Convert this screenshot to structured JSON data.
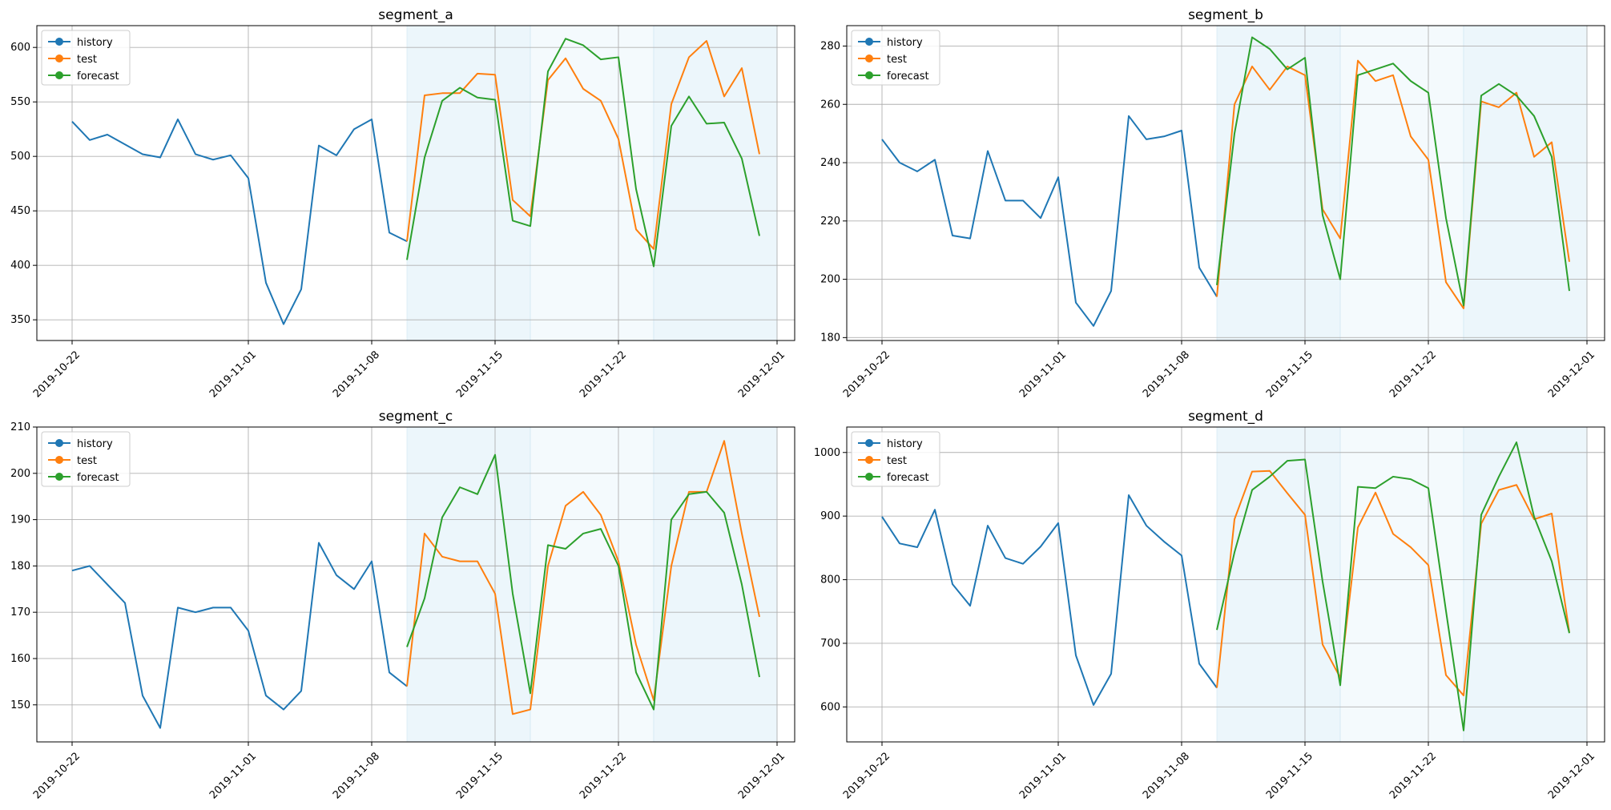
{
  "colors": {
    "history": "#1f77b4",
    "test": "#ff7f0e",
    "forecast": "#2ca02c",
    "grid": "#b0b0b0",
    "shade": "#e6f3fa"
  },
  "chart_data": [
    {
      "type": "line",
      "title": "segment_a",
      "xlabel": "",
      "ylabel": "",
      "x_ticks": [
        "2019-10-22",
        "2019-11-01",
        "2019-11-08",
        "2019-11-15",
        "2019-11-22",
        "2019-12-01"
      ],
      "y_ticks": [
        350,
        400,
        450,
        500,
        550,
        600
      ],
      "ylim": [
        331,
        620
      ],
      "xlim": [
        "2019-10-20",
        "2019-12-02"
      ],
      "grid": true,
      "legend": "top-left",
      "legend_entries": [
        "history",
        "test",
        "forecast"
      ],
      "shaded_ranges": [
        {
          "start": "2019-11-10",
          "end": "2019-11-17",
          "level": "darker"
        },
        {
          "start": "2019-11-17",
          "end": "2019-11-24",
          "level": "lighter"
        },
        {
          "start": "2019-11-24",
          "end": "2019-12-01",
          "level": "darker"
        }
      ],
      "series": [
        {
          "name": "history",
          "start": "2019-10-22",
          "values": [
            532,
            515,
            520,
            511,
            502,
            499,
            534,
            502,
            497,
            501,
            480,
            384,
            346,
            378,
            510,
            501,
            525,
            534,
            430,
            422
          ]
        },
        {
          "name": "test",
          "start": "2019-11-10",
          "values": [
            422,
            556,
            558,
            558,
            576,
            575,
            460,
            445,
            570,
            590,
            562,
            551,
            516,
            433,
            415,
            548,
            591,
            606,
            555,
            581,
            502
          ]
        },
        {
          "name": "forecast",
          "start": "2019-11-10",
          "values": [
            405,
            499,
            551,
            563,
            554,
            552,
            441,
            436,
            578,
            608,
            602,
            589,
            591,
            470,
            399,
            528,
            555,
            530,
            531,
            498,
            427
          ]
        }
      ]
    },
    {
      "type": "line",
      "title": "segment_b",
      "xlabel": "",
      "ylabel": "",
      "x_ticks": [
        "2019-10-22",
        "2019-11-01",
        "2019-11-08",
        "2019-11-15",
        "2019-11-22",
        "2019-12-01"
      ],
      "y_ticks": [
        180,
        200,
        220,
        240,
        260,
        280
      ],
      "ylim": [
        179,
        287
      ],
      "xlim": [
        "2019-10-20",
        "2019-12-02"
      ],
      "grid": true,
      "legend": "top-left",
      "legend_entries": [
        "history",
        "test",
        "forecast"
      ],
      "shaded_ranges": [
        {
          "start": "2019-11-10",
          "end": "2019-11-17",
          "level": "darker"
        },
        {
          "start": "2019-11-17",
          "end": "2019-11-24",
          "level": "lighter"
        },
        {
          "start": "2019-11-24",
          "end": "2019-12-01",
          "level": "darker"
        }
      ],
      "series": [
        {
          "name": "history",
          "start": "2019-10-22",
          "values": [
            248,
            240,
            237,
            241,
            215,
            214,
            244,
            227,
            227,
            221,
            235,
            192,
            184,
            196,
            256,
            248,
            249,
            251,
            204,
            194
          ]
        },
        {
          "name": "test",
          "start": "2019-11-10",
          "values": [
            194,
            260,
            273,
            265,
            273,
            270,
            224,
            214,
            275,
            268,
            270,
            249,
            241,
            199,
            190,
            261,
            259,
            264,
            242,
            247,
            206
          ]
        },
        {
          "name": "forecast",
          "start": "2019-11-10",
          "values": [
            198,
            250,
            283,
            279,
            272,
            276,
            222,
            200,
            270,
            272,
            274,
            268,
            264,
            221,
            191,
            263,
            267,
            263,
            256,
            242,
            196
          ]
        }
      ]
    },
    {
      "type": "line",
      "title": "segment_c",
      "xlabel": "",
      "ylabel": "",
      "x_ticks": [
        "2019-10-22",
        "2019-11-01",
        "2019-11-08",
        "2019-11-15",
        "2019-11-22",
        "2019-12-01"
      ],
      "y_ticks": [
        150,
        160,
        170,
        180,
        190,
        200,
        210
      ],
      "ylim": [
        142,
        210
      ],
      "xlim": [
        "2019-10-20",
        "2019-12-02"
      ],
      "grid": true,
      "legend": "top-left",
      "legend_entries": [
        "history",
        "test",
        "forecast"
      ],
      "shaded_ranges": [
        {
          "start": "2019-11-10",
          "end": "2019-11-17",
          "level": "darker"
        },
        {
          "start": "2019-11-17",
          "end": "2019-11-24",
          "level": "lighter"
        },
        {
          "start": "2019-11-24",
          "end": "2019-12-01",
          "level": "darker"
        }
      ],
      "series": [
        {
          "name": "history",
          "start": "2019-10-22",
          "values": [
            179,
            180,
            176,
            172,
            152,
            145,
            171,
            170,
            171,
            171,
            166,
            152,
            149,
            153,
            185,
            178,
            175,
            181,
            157,
            154
          ]
        },
        {
          "name": "test",
          "start": "2019-11-10",
          "values": [
            154,
            187,
            182,
            181,
            181,
            174,
            148,
            149,
            180,
            193,
            196,
            191,
            181,
            163,
            151,
            180,
            196,
            196,
            207,
            187,
            169
          ]
        },
        {
          "name": "forecast",
          "start": "2019-11-10",
          "values": [
            162.5,
            173,
            190.5,
            197,
            195.5,
            204,
            174,
            152.5,
            184.5,
            183.7,
            187,
            188,
            180,
            157,
            149,
            190,
            195.5,
            196,
            191.5,
            176,
            156
          ]
        }
      ]
    },
    {
      "type": "line",
      "title": "segment_d",
      "xlabel": "",
      "ylabel": "",
      "x_ticks": [
        "2019-10-22",
        "2019-11-01",
        "2019-11-08",
        "2019-11-15",
        "2019-11-22",
        "2019-12-01"
      ],
      "y_ticks": [
        600,
        700,
        800,
        900,
        1000
      ],
      "ylim": [
        545,
        1040
      ],
      "xlim": [
        "2019-10-20",
        "2019-12-02"
      ],
      "grid": true,
      "legend": "top-left",
      "legend_entries": [
        "history",
        "test",
        "forecast"
      ],
      "shaded_ranges": [
        {
          "start": "2019-11-10",
          "end": "2019-11-17",
          "level": "darker"
        },
        {
          "start": "2019-11-17",
          "end": "2019-11-24",
          "level": "lighter"
        },
        {
          "start": "2019-11-24",
          "end": "2019-12-01",
          "level": "darker"
        }
      ],
      "series": [
        {
          "name": "history",
          "start": "2019-10-22",
          "values": [
            899,
            857,
            851,
            910,
            793,
            759,
            885,
            834,
            825,
            852,
            889,
            681,
            603,
            652,
            933,
            885,
            860,
            838,
            668,
            630
          ]
        },
        {
          "name": "test",
          "start": "2019-11-10",
          "values": [
            630,
            895,
            970,
            971,
            936,
            902,
            698,
            646,
            882,
            937,
            872,
            851,
            823,
            650,
            618,
            888,
            941,
            949,
            895,
            904,
            717
          ]
        },
        {
          "name": "forecast",
          "start": "2019-11-10",
          "values": [
            721,
            843,
            941,
            962,
            987,
            989,
            797,
            634,
            946,
            944,
            962,
            958,
            944,
            751,
            563,
            902,
            962,
            1016,
            899,
            829,
            716
          ]
        }
      ]
    }
  ]
}
